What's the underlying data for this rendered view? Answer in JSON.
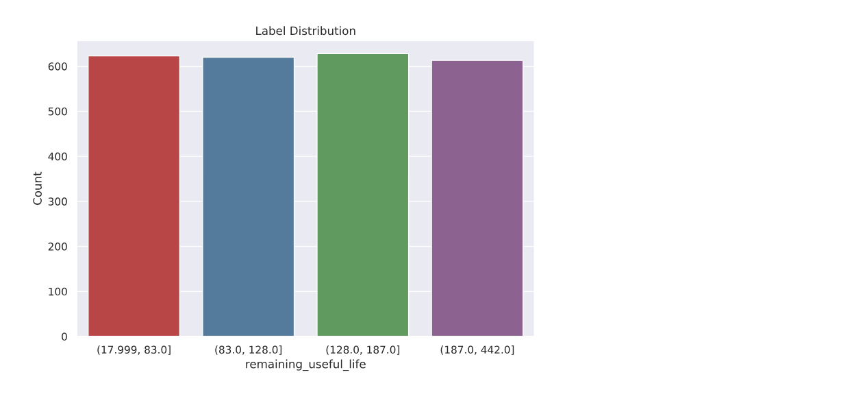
{
  "chart_data": {
    "type": "bar",
    "title": "Label Distribution",
    "xlabel": "remaining_useful_life",
    "ylabel": "Count",
    "categories": [
      "(17.999, 83.0]",
      "(83.0, 128.0]",
      "(128.0, 187.0]",
      "(187.0, 442.0]"
    ],
    "values": [
      623,
      620,
      628,
      613
    ],
    "colors": [
      "#b94646",
      "#547b9c",
      "#619a5f",
      "#8b6290"
    ],
    "ylim": [
      0,
      657
    ],
    "yticks": [
      0,
      100,
      200,
      300,
      400,
      500,
      600
    ],
    "grid": "y"
  }
}
